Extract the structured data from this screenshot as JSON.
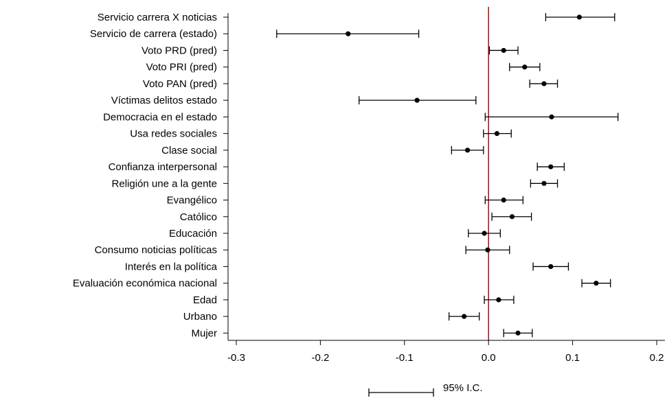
{
  "chart_data": {
    "type": "scatter",
    "title": "",
    "xlabel": "",
    "ylabel": "",
    "xlim": [
      -0.3,
      0.2
    ],
    "xticks": [
      -0.3,
      -0.2,
      -0.1,
      0.0,
      0.1,
      0.2
    ],
    "xtick_labels": [
      "-0.3",
      "-0.2",
      "-0.1",
      "0.0",
      "0.1",
      "0.2"
    ],
    "reference_line": 0.0,
    "grid": false,
    "legend": {
      "label": "95% I.C.",
      "position": "bottom-center"
    },
    "colors": {
      "marker": "#000000",
      "error_bar": "#000000",
      "reference_line": "#8b1a1a"
    },
    "points": [
      {
        "label": "Servicio carrera X noticias",
        "value": 0.108,
        "ci_low": 0.068,
        "ci_high": 0.15
      },
      {
        "label": "Servicio de carrera (estado)",
        "value": -0.167,
        "ci_low": -0.252,
        "ci_high": -0.083
      },
      {
        "label": "Voto PRD (pred)",
        "value": 0.018,
        "ci_low": 0.001,
        "ci_high": 0.035
      },
      {
        "label": "Voto PRI (pred)",
        "value": 0.043,
        "ci_low": 0.025,
        "ci_high": 0.061
      },
      {
        "label": "Voto PAN (pred)",
        "value": 0.066,
        "ci_low": 0.049,
        "ci_high": 0.082
      },
      {
        "label": "Víctimas delitos estado",
        "value": -0.085,
        "ci_low": -0.154,
        "ci_high": -0.015
      },
      {
        "label": "Democracia en el estado",
        "value": 0.075,
        "ci_low": -0.004,
        "ci_high": 0.154
      },
      {
        "label": "Usa redes sociales",
        "value": 0.01,
        "ci_low": -0.006,
        "ci_high": 0.027
      },
      {
        "label": "Clase social",
        "value": -0.025,
        "ci_low": -0.044,
        "ci_high": -0.006
      },
      {
        "label": "Confianza interpersonal",
        "value": 0.074,
        "ci_low": 0.058,
        "ci_high": 0.09
      },
      {
        "label": "Religión une a la gente",
        "value": 0.066,
        "ci_low": 0.05,
        "ci_high": 0.082
      },
      {
        "label": "Evangélico",
        "value": 0.018,
        "ci_low": -0.004,
        "ci_high": 0.041
      },
      {
        "label": "Católico",
        "value": 0.028,
        "ci_low": 0.004,
        "ci_high": 0.051
      },
      {
        "label": "Educación",
        "value": -0.005,
        "ci_low": -0.024,
        "ci_high": 0.014
      },
      {
        "label": "Consumo noticias políticas",
        "value": -0.001,
        "ci_low": -0.027,
        "ci_high": 0.025
      },
      {
        "label": "Interés en la política",
        "value": 0.074,
        "ci_low": 0.053,
        "ci_high": 0.095
      },
      {
        "label": "Evaluación económica nacional",
        "value": 0.128,
        "ci_low": 0.111,
        "ci_high": 0.145
      },
      {
        "label": "Edad",
        "value": 0.012,
        "ci_low": -0.005,
        "ci_high": 0.03
      },
      {
        "label": "Urbano",
        "value": -0.029,
        "ci_low": -0.047,
        "ci_high": -0.011
      },
      {
        "label": "Mujer",
        "value": 0.035,
        "ci_low": 0.018,
        "ci_high": 0.052
      }
    ]
  }
}
